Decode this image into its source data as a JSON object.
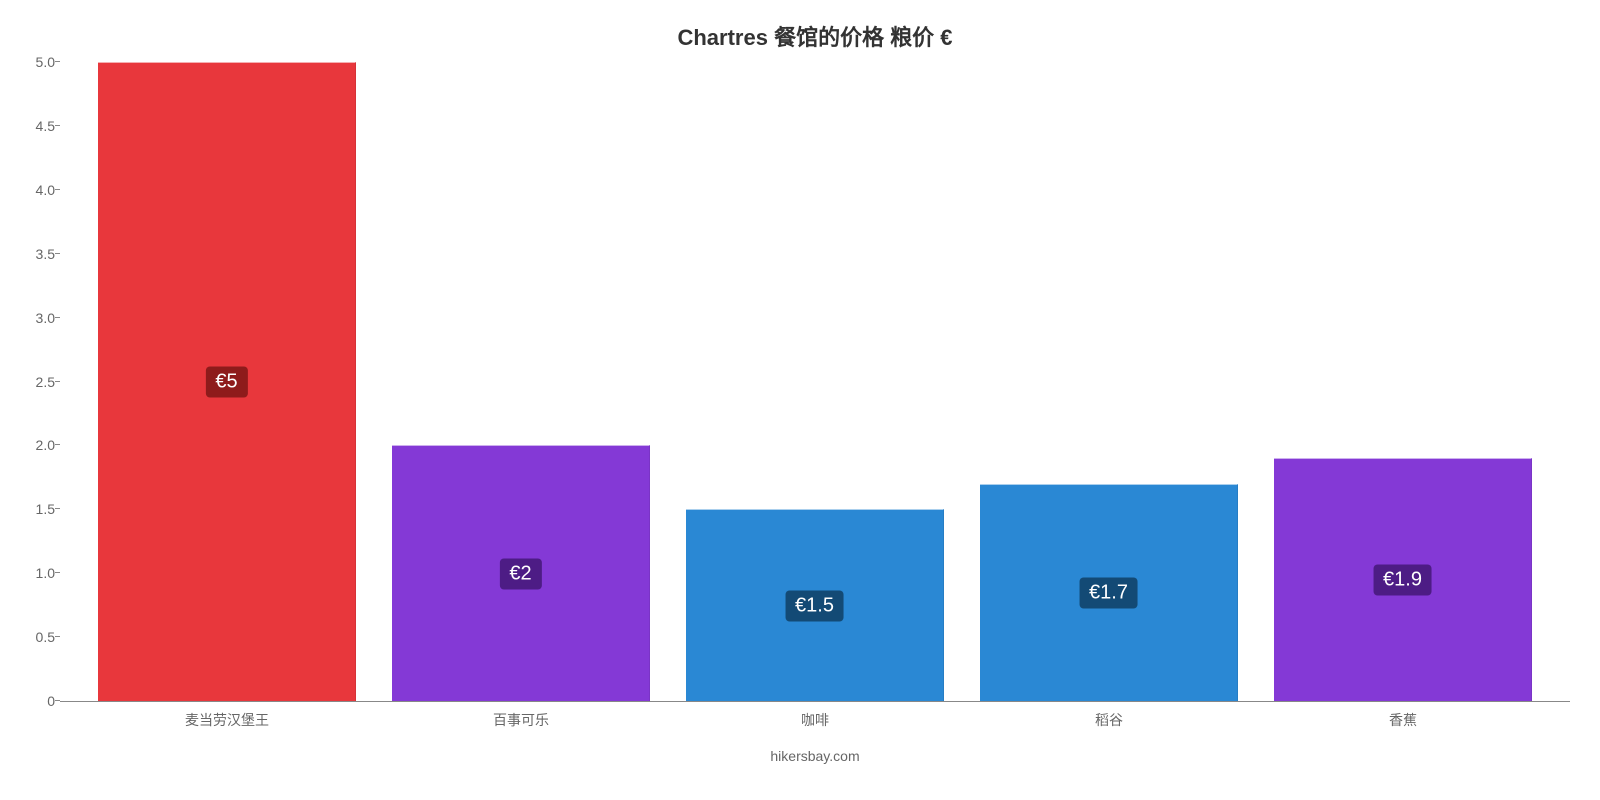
{
  "chart": {
    "type": "bar",
    "title": "Chartres 餐馆的价格 粮价 €",
    "title_fontsize": 22,
    "title_color": "#333333",
    "background_color": "#ffffff",
    "credit": "hikersbay.com",
    "credit_color": "#666666",
    "yaxis": {
      "min": 0,
      "max": 5.0,
      "ticks": [
        0,
        0.5,
        1.0,
        1.5,
        2.0,
        2.5,
        3.0,
        3.5,
        4.0,
        4.5,
        5.0
      ],
      "tick_labels": [
        "0",
        "0.5",
        "1.0",
        "1.5",
        "2.0",
        "2.5",
        "3.0",
        "3.5",
        "4.0",
        "4.5",
        "5.0"
      ],
      "label_color": "#666666",
      "label_fontsize": 14
    },
    "xaxis": {
      "label_color": "#666666",
      "label_fontsize": 14
    },
    "bar_width_ratio": 0.88,
    "categories": [
      "麦当劳汉堡王",
      "百事可乐",
      "咖啡",
      "稻谷",
      "香蕉"
    ],
    "values": [
      5.0,
      2.0,
      1.5,
      1.7,
      1.9
    ],
    "value_labels": [
      "€5",
      "€2",
      "€1.5",
      "€1.7",
      "€1.9"
    ],
    "bar_colors": [
      "#e8373c",
      "#8439d6",
      "#2a88d4",
      "#2a88d4",
      "#8439d6"
    ],
    "value_label_bg": [
      "#8e1b1b",
      "#4d1c85",
      "#134a75",
      "#134a75",
      "#4d1c85"
    ],
    "value_label_color": "#ffffff",
    "value_label_fontsize": 20
  }
}
